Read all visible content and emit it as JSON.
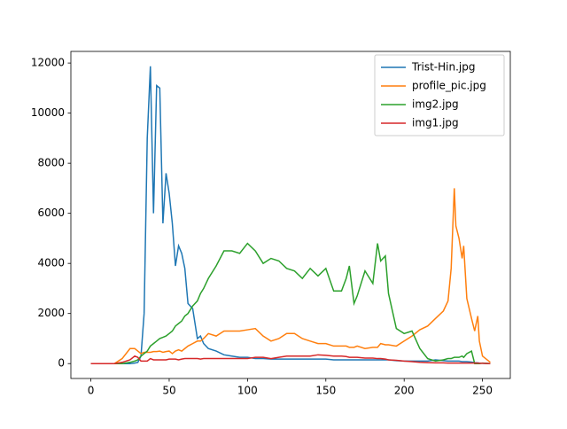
{
  "chart_data": {
    "type": "line",
    "x": [
      0,
      5,
      10,
      15,
      20,
      25,
      28,
      30,
      32,
      34,
      36,
      38,
      40,
      42,
      44,
      46,
      48,
      50,
      52,
      54,
      56,
      58,
      60,
      62,
      65,
      68,
      70,
      72,
      75,
      80,
      85,
      90,
      95,
      100,
      105,
      110,
      115,
      120,
      125,
      130,
      135,
      140,
      145,
      150,
      155,
      160,
      163,
      165,
      168,
      170,
      175,
      180,
      183,
      185,
      188,
      190,
      195,
      200,
      205,
      210,
      215,
      220,
      225,
      228,
      230,
      232,
      233,
      235,
      237,
      238,
      240,
      243,
      245,
      247,
      248,
      250,
      255
    ],
    "series": [
      {
        "name": "Trist-Hin.jpg",
        "color": "#1f77b4",
        "values": [
          0,
          0,
          0,
          0,
          0,
          0,
          20,
          50,
          300,
          2000,
          9000,
          11870,
          6000,
          11100,
          11000,
          5600,
          7600,
          6800,
          5600,
          3900,
          4700,
          4400,
          3800,
          2400,
          2200,
          1000,
          1100,
          800,
          600,
          500,
          350,
          300,
          250,
          250,
          200,
          200,
          180,
          180,
          180,
          180,
          180,
          180,
          180,
          180,
          150,
          150,
          150,
          150,
          150,
          150,
          150,
          150,
          150,
          150,
          150,
          150,
          120,
          100,
          100,
          100,
          100,
          150,
          120,
          100,
          100,
          100,
          100,
          100,
          80,
          80,
          80,
          60,
          40,
          30,
          20,
          10,
          0
        ]
      },
      {
        "name": "profile_pic.jpg",
        "color": "#ff7f0e",
        "values": [
          0,
          0,
          0,
          0,
          200,
          600,
          600,
          500,
          400,
          450,
          450,
          450,
          480,
          480,
          500,
          450,
          480,
          500,
          400,
          500,
          550,
          500,
          600,
          700,
          800,
          900,
          900,
          1000,
          1200,
          1100,
          1300,
          1300,
          1300,
          1350,
          1400,
          1100,
          900,
          1000,
          1200,
          1200,
          1000,
          900,
          800,
          800,
          700,
          700,
          700,
          650,
          650,
          700,
          600,
          650,
          650,
          800,
          750,
          750,
          700,
          900,
          1100,
          1350,
          1500,
          1800,
          2100,
          2500,
          3800,
          7000,
          5500,
          5000,
          4200,
          4700,
          2600,
          1800,
          1300,
          1900,
          900,
          300,
          50
        ]
      },
      {
        "name": "img2.jpg",
        "color": "#2ca02c",
        "values": [
          0,
          0,
          0,
          0,
          0,
          50,
          100,
          150,
          300,
          400,
          500,
          700,
          800,
          900,
          1000,
          1050,
          1100,
          1200,
          1300,
          1500,
          1600,
          1700,
          1900,
          2000,
          2300,
          2500,
          2800,
          3000,
          3400,
          3900,
          4500,
          4500,
          4400,
          4800,
          4500,
          4000,
          4200,
          4100,
          3800,
          3700,
          3400,
          3800,
          3500,
          3800,
          2900,
          2900,
          3400,
          3900,
          2400,
          2700,
          3700,
          3200,
          4800,
          4100,
          4300,
          2800,
          1400,
          1200,
          1300,
          600,
          200,
          100,
          150,
          200,
          200,
          250,
          250,
          250,
          300,
          250,
          400,
          500,
          0,
          0,
          0,
          20,
          0
        ]
      },
      {
        "name": "img1.jpg",
        "color": "#d62728",
        "values": [
          0,
          0,
          0,
          0,
          50,
          150,
          300,
          250,
          100,
          100,
          100,
          200,
          150,
          150,
          150,
          150,
          150,
          180,
          180,
          180,
          150,
          180,
          200,
          200,
          200,
          200,
          180,
          200,
          200,
          200,
          200,
          200,
          200,
          200,
          250,
          250,
          200,
          250,
          300,
          300,
          300,
          300,
          350,
          330,
          300,
          300,
          280,
          250,
          250,
          250,
          220,
          220,
          200,
          200,
          180,
          150,
          130,
          100,
          80,
          50,
          40,
          30,
          30,
          20,
          20,
          20,
          20,
          20,
          20,
          20,
          20,
          20,
          20,
          20,
          10,
          10,
          0
        ]
      }
    ],
    "xlim": [
      -12.75,
      267.75
    ],
    "ylim": [
      -594,
      12464
    ],
    "xticks": [
      0,
      50,
      100,
      150,
      200,
      250
    ],
    "yticks": [
      0,
      2000,
      4000,
      6000,
      8000,
      10000,
      12000
    ],
    "legend": "upper right"
  }
}
